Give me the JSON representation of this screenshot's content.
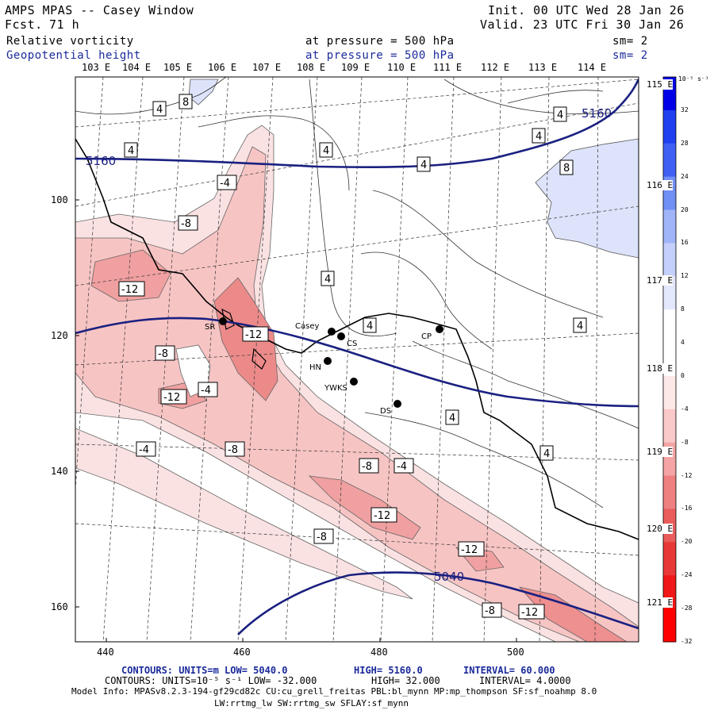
{
  "header": {
    "model": "AMPS MPAS -- Casey Window",
    "fcst_label": "Fcst.",
    "fcst_value": "71 h",
    "init": "Init. 00 UTC Wed 28 Jan 26",
    "valid": "Valid. 23 UTC Fri 30 Jan 26",
    "field1_name": "Relative vorticity",
    "field1_level": "at pressure =  500 hPa",
    "field1_sm": "sm= 2",
    "field2_name": "Geopotential height",
    "field2_level": "at pressure =  500 hPa",
    "field2_sm": "sm= 2"
  },
  "longitudes_top": [
    "103 E",
    "104 E",
    "105 E",
    "106 E",
    "107 E",
    "108 E",
    "109 E",
    "110 E",
    "111 E",
    "112 E",
    "113 E",
    "114 E"
  ],
  "longitudes_right": [
    "115 E",
    "116 E",
    "117 E",
    "118 E",
    "119 E",
    "120 E",
    "121 E"
  ],
  "y_ticks": [
    "100",
    "120",
    "140",
    "160"
  ],
  "x_ticks": [
    "440",
    "460",
    "480",
    "500"
  ],
  "colorbar": {
    "units": "10⁻⁵ s⁻¹",
    "labels": [
      "32",
      "28",
      "24",
      "20",
      "16",
      "12",
      "8",
      "4",
      "0",
      "-4",
      "-8",
      "-12",
      "-16",
      "-20",
      "-24",
      "-28",
      "-32"
    ],
    "colors": [
      "#0000e8",
      "#2040f0",
      "#4060f4",
      "#7090f6",
      "#a0b4f8",
      "#c4d0fa",
      "#e4e8fc",
      "#ffffff",
      "#ffffff",
      "#fde8e8",
      "#f9c8c8",
      "#f4a4a4",
      "#ee8080",
      "#ea5c5c",
      "#e83838",
      "#f01818",
      "#ff0000"
    ]
  },
  "stations": [
    {
      "name": "SR"
    },
    {
      "name": "Casey"
    },
    {
      "name": "CS"
    },
    {
      "name": "CP"
    },
    {
      "name": "HN"
    },
    {
      "name": "YWKS"
    },
    {
      "name": "DS"
    }
  ],
  "height_labels": [
    "5160",
    "5160",
    "5040"
  ],
  "vort_labels": [
    "4",
    "8",
    "4",
    "4",
    "4",
    "4",
    "4",
    "8",
    "-4",
    "-8",
    "-12",
    "4",
    "-12",
    "4",
    "4",
    "-8",
    "-4",
    "-12",
    "-8",
    "-4",
    "4",
    "4",
    "-8",
    "-4",
    "-12",
    "-8",
    "-12",
    "-8",
    "-12"
  ],
  "footer": {
    "line1_a": "CONTOURS:  UNITS=m  LOW=  5040.0",
    "line1_b": "HIGH=  5160.0",
    "line1_c": "INTERVAL=   60.000",
    "line2_a": "CONTOURS:  UNITS=10⁻⁵ s⁻¹  LOW= -32.000",
    "line2_b": "HIGH=  32.000",
    "line2_c": "INTERVAL=   4.0000",
    "model_info": "Model Info: MPASv8.2.3-194-gf29cd82c CU:cu_grell_freitas PBL:bl_mynn MP:mp_thompson SF:sf_noahmp 8.0",
    "model_info2": "LW:rrtmg_lw SW:rrtmg_sw SFLAY:sf_mynn"
  }
}
